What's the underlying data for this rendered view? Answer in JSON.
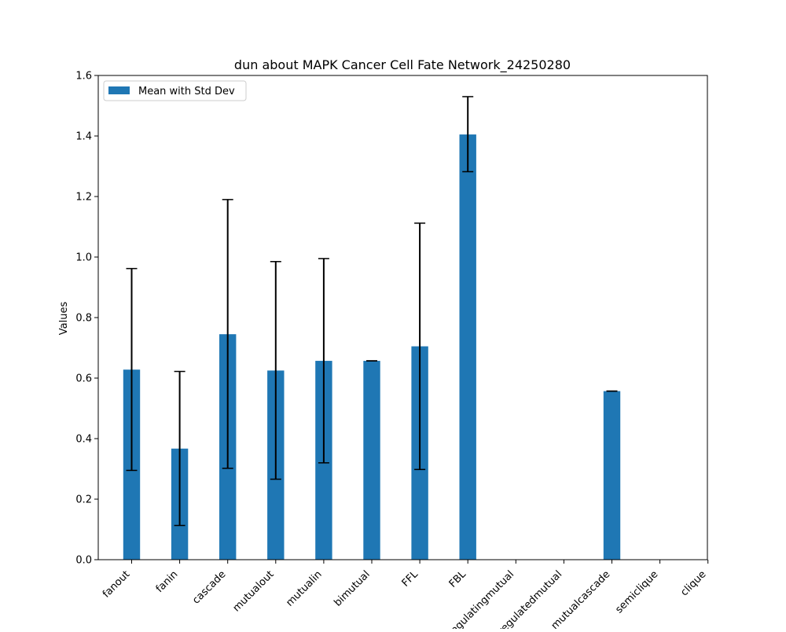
{
  "chart_data": {
    "type": "bar",
    "title": "dun about MAPK Cancer Cell Fate Network_24250280",
    "xlabel": "",
    "ylabel": "Values",
    "ylim": [
      0,
      1.6
    ],
    "yticks": [
      "0.0",
      "0.2",
      "0.4",
      "0.6",
      "0.8",
      "1.0",
      "1.2",
      "1.4",
      "1.6"
    ],
    "grid": false,
    "legend": {
      "placement": "top-left"
    },
    "categories": [
      "fanout",
      "fanin",
      "cascade",
      "mutualout",
      "mutualin",
      "bimutual",
      "FFL",
      "FBL",
      "regulatingmutual",
      "regulatedmutual",
      "mutualcascade",
      "semiclique",
      "clique"
    ],
    "series": [
      {
        "name": "Mean with Std Dev",
        "color": "#1f77b4",
        "values": [
          0.628,
          0.367,
          0.745,
          0.625,
          0.657,
          0.657,
          0.705,
          1.405,
          0,
          0,
          0.557,
          0,
          0
        ],
        "error_low": [
          0.295,
          0.113,
          0.302,
          0.266,
          0.32,
          0.657,
          0.298,
          1.282,
          null,
          null,
          0.557,
          null,
          null
        ],
        "error_high": [
          0.962,
          0.622,
          1.19,
          0.985,
          0.995,
          0.657,
          1.112,
          1.53,
          null,
          null,
          0.557,
          null,
          null
        ]
      }
    ]
  }
}
